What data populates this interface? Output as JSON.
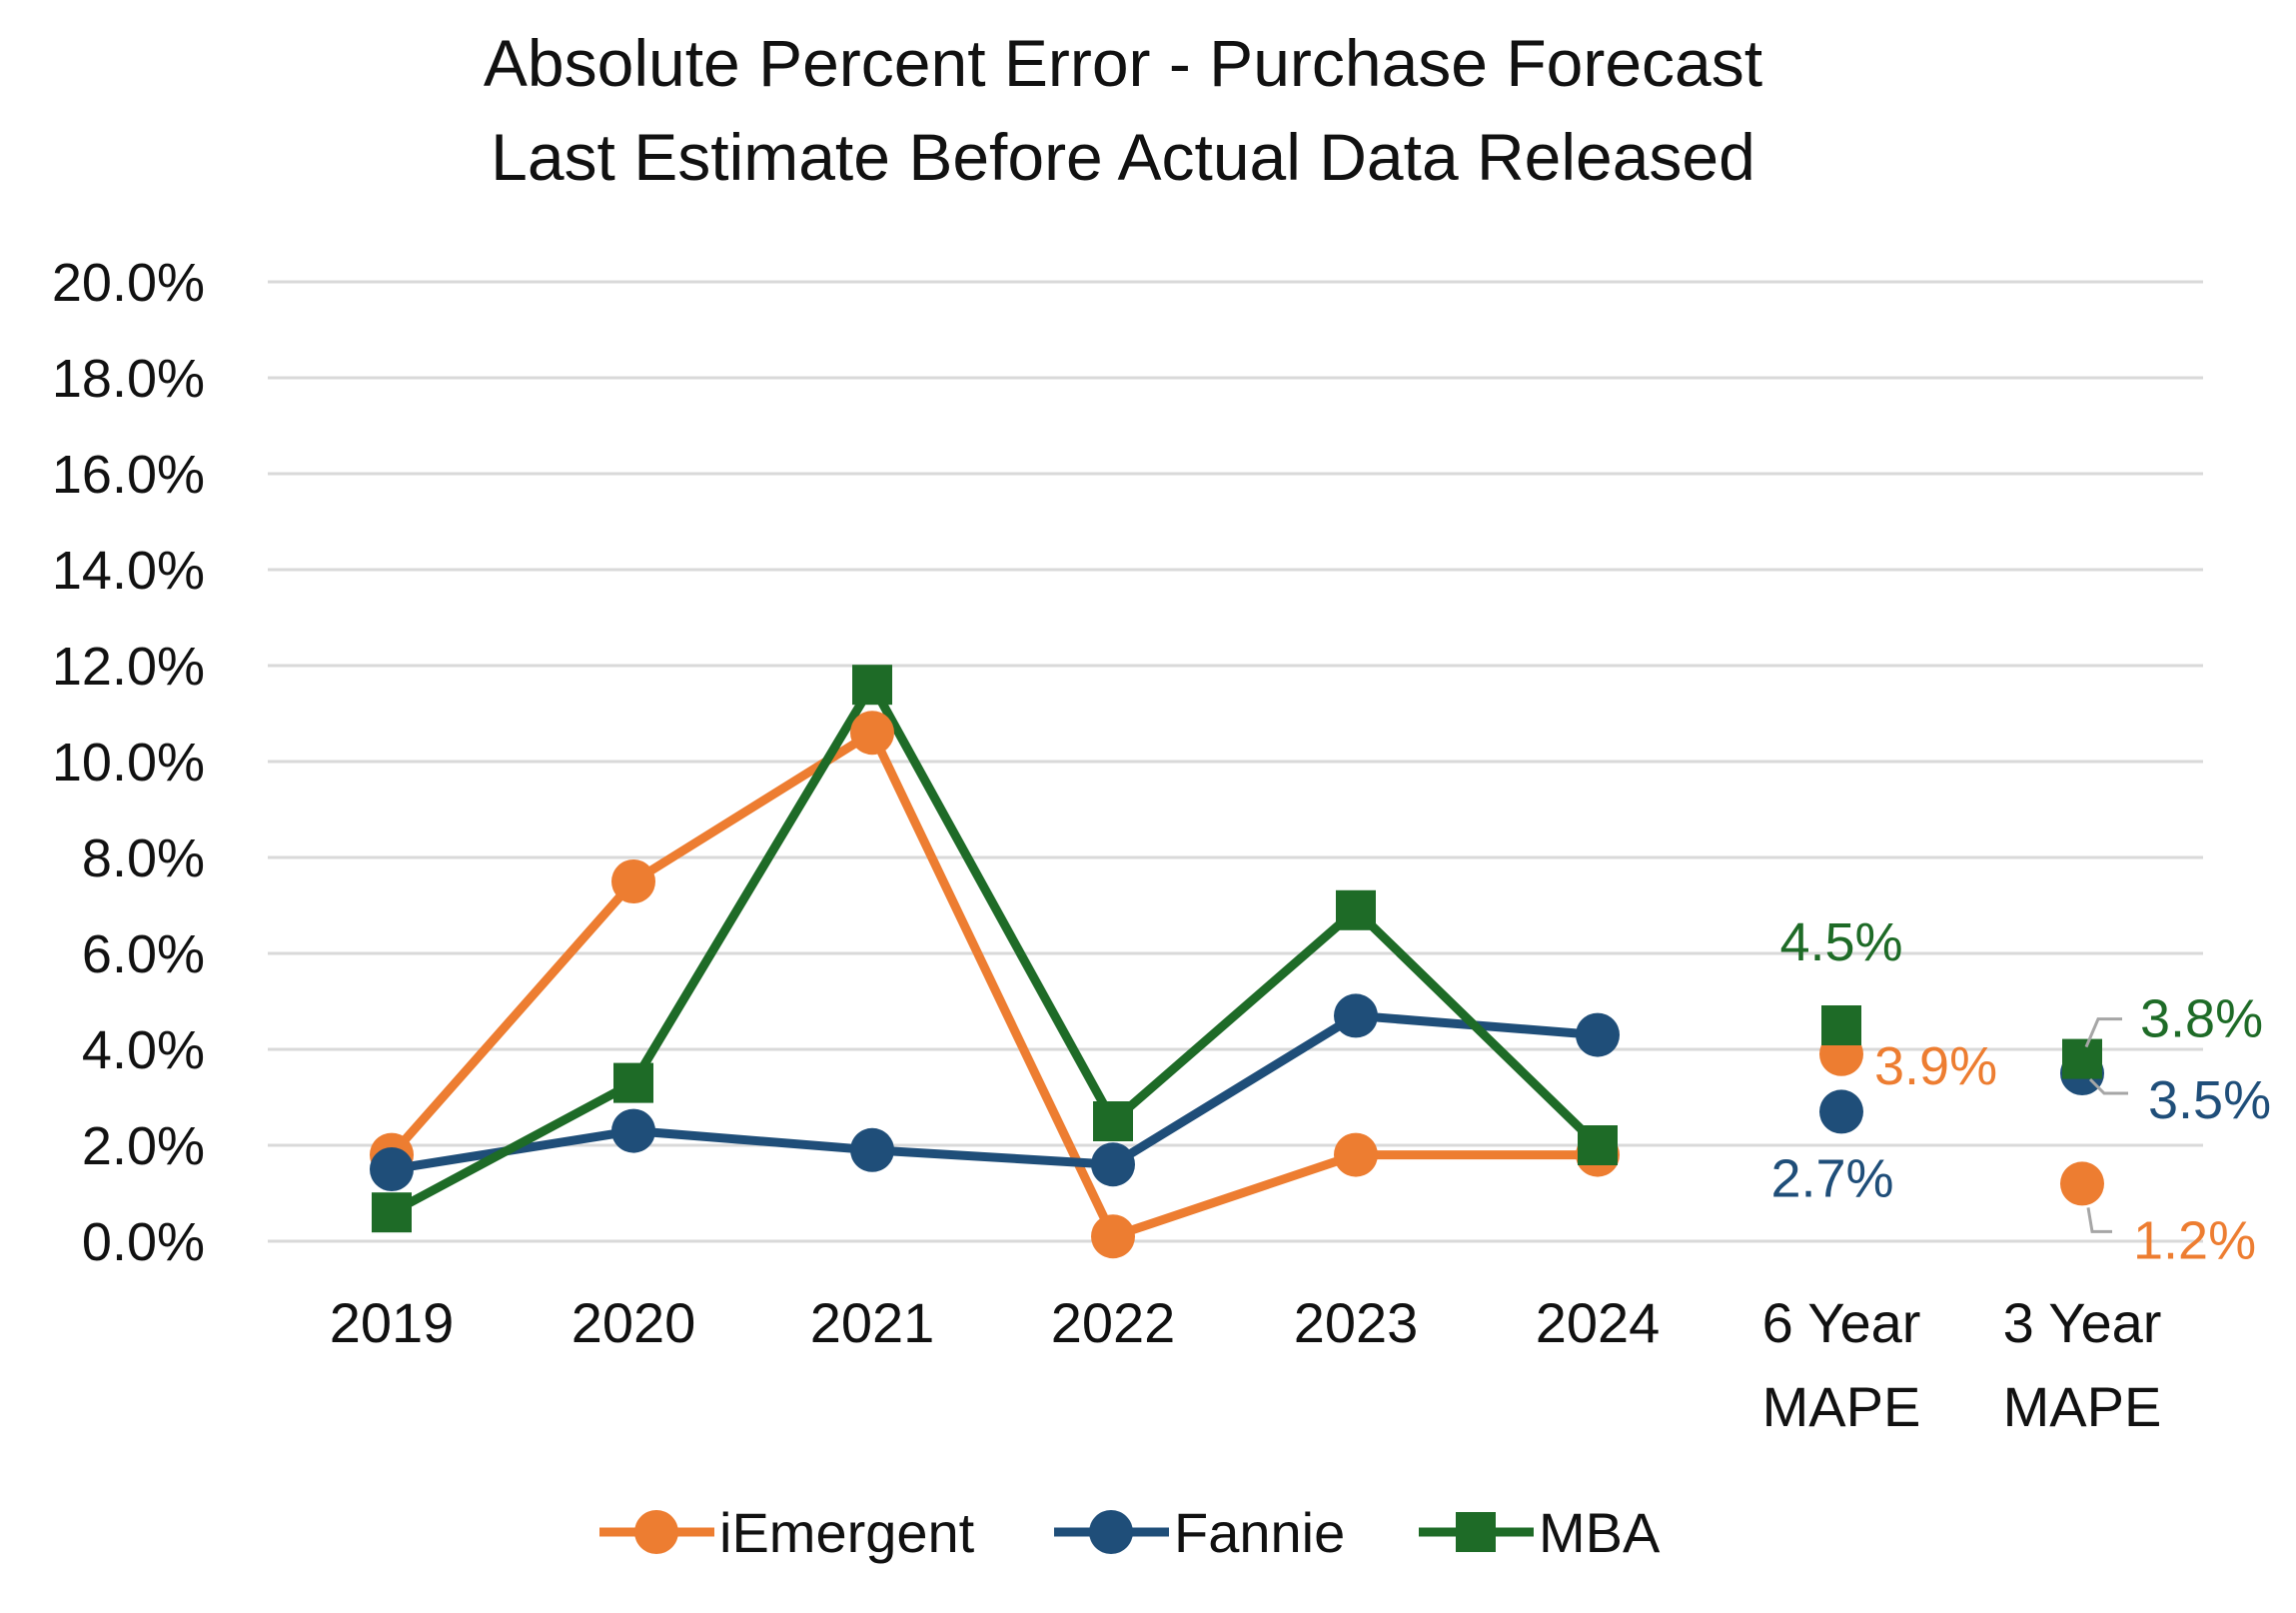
{
  "chart_data": {
    "type": "line",
    "title": [
      "Absolute Percent Error -  Purchase Forecast",
      "Last Estimate Before Actual Data Released"
    ],
    "xlabel": "",
    "ylabel": "",
    "ylim": [
      0,
      20
    ],
    "yticks": [
      "0.0%",
      "2.0%",
      "4.0%",
      "6.0%",
      "8.0%",
      "10.0%",
      "12.0%",
      "14.0%",
      "16.0%",
      "18.0%",
      "20.0%"
    ],
    "categories": [
      [
        "2019"
      ],
      [
        "2020"
      ],
      [
        "2021"
      ],
      [
        "2022"
      ],
      [
        "2023"
      ],
      [
        "2024"
      ],
      [
        "6 Year",
        "MAPE"
      ],
      [
        "3 Year",
        "MAPE"
      ]
    ],
    "grid": true,
    "legend_position": "bottom",
    "series": [
      {
        "name": "iEmergent",
        "color": "#ED7D31",
        "marker": "circle",
        "line_values": [
          1.8,
          7.5,
          10.6,
          0.1,
          1.8,
          1.8
        ],
        "summary_values": [
          3.9,
          1.2
        ],
        "summary_labels": [
          "3.9%",
          "1.2%"
        ]
      },
      {
        "name": "Fannie",
        "color": "#1F4E79",
        "marker": "circle",
        "line_values": [
          1.5,
          2.3,
          1.9,
          1.6,
          4.7,
          4.3
        ],
        "summary_values": [
          2.7,
          3.5
        ],
        "summary_labels": [
          "2.7%",
          "3.5%"
        ]
      },
      {
        "name": "MBA",
        "color": "#1E6B27",
        "marker": "square",
        "line_values": [
          0.6,
          3.3,
          11.6,
          2.5,
          6.9,
          2.0
        ],
        "summary_values": [
          4.5,
          3.8
        ],
        "summary_labels": [
          "4.5%",
          "3.8%"
        ]
      }
    ]
  }
}
